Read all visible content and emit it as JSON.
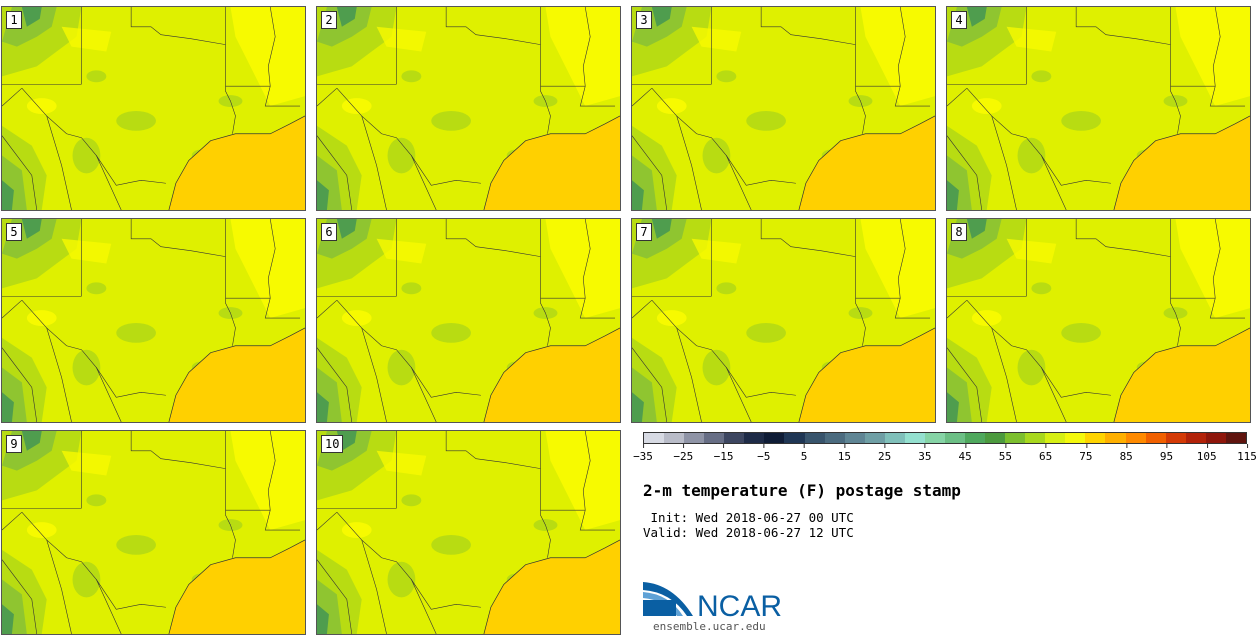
{
  "panels": [
    {
      "label": "1"
    },
    {
      "label": "2"
    },
    {
      "label": "3"
    },
    {
      "label": "4"
    },
    {
      "label": "5"
    },
    {
      "label": "6"
    },
    {
      "label": "7"
    },
    {
      "label": "8"
    },
    {
      "label": "9"
    },
    {
      "label": "10"
    }
  ],
  "colorbar": {
    "colors": [
      "#d7dae3",
      "#b9bcc8",
      "#8f94a6",
      "#676e85",
      "#3d4660",
      "#1e2b47",
      "#0f1c36",
      "#1f3654",
      "#38546c",
      "#4b6b7f",
      "#5f8594",
      "#6f9fa5",
      "#80c0ba",
      "#94e0cf",
      "#86d4a6",
      "#6cbf85",
      "#4fa85d",
      "#4c9a3e",
      "#7cbf2e",
      "#a8d81e",
      "#d6ef14",
      "#f4f80c",
      "#ffd400",
      "#ffb000",
      "#ff8a00",
      "#f16000",
      "#d43a06",
      "#b22209",
      "#8e160b",
      "#5f140e"
    ],
    "tick_labels": [
      "−35",
      "−25",
      "−15",
      "−5",
      "5",
      "15",
      "25",
      "35",
      "45",
      "55",
      "65",
      "75",
      "85",
      "95",
      "105",
      "115"
    ]
  },
  "title": "2-m temperature (F) postage stamp",
  "init_line": " Init: Wed 2018-06-27 00 UTC",
  "valid_line": "Valid: Wed 2018-06-27 12 UTC",
  "logo": {
    "text": "NCAR",
    "url": "ensemble.ucar.edu",
    "color": "#0a5fa3"
  },
  "map_colors": {
    "land": "#dff000",
    "warm": "#f7fa00",
    "cool": "#b8dc12",
    "cooler": "#8fc530",
    "coolest": "#4f9d4e",
    "gulf": "#ffd000",
    "gulf_edge": "#ffbf00"
  }
}
